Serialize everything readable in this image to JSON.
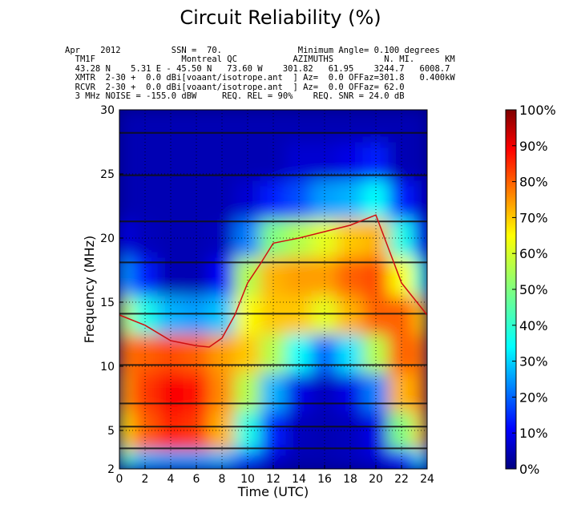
{
  "header": {
    "title": "Circuit Reliability (%)",
    "lines": [
      "Apr    2012          SSN =  70.               Minimum Angle= 0.100 degrees",
      "  TM1F                 Montreal QC           AZIMUTHS          N. MI.      KM",
      "  43.28 N    5.31 E - 45.50 N   73.60 W    301.82   61.95    3244.7   6008.7",
      "  XMTR  2-30 +  0.0 dBi[voaant/isotrope.ant  ] Az=  0.0 OFFaz=301.8   0.400kW",
      "  RCVR  2-30 +  0.0 dBi[voaant/isotrope.ant  ] Az=  0.0 OFFaz= 62.0",
      "  3 MHz NOISE = -155.0 dBW     REQ. REL = 90%    REQ. SNR = 24.0 dB"
    ]
  },
  "chart_data": {
    "type": "heatmap",
    "title": "Circuit Reliability (%)",
    "xlabel": "Time (UTC)",
    "ylabel": "Frequency (MHz)",
    "xlim": [
      0,
      24
    ],
    "ylim": [
      2,
      30
    ],
    "xticks": [
      0,
      2,
      4,
      6,
      8,
      10,
      12,
      14,
      16,
      18,
      20,
      22,
      24
    ],
    "yticks": [
      2,
      5,
      10,
      15,
      20,
      25,
      30
    ],
    "colorbar": {
      "min": 0,
      "max": 100,
      "ticks": [
        "0%",
        "10%",
        "20%",
        "30%",
        "40%",
        "50%",
        "60%",
        "70%",
        "80%",
        "90%",
        "100%"
      ]
    },
    "grid": true,
    "x": [
      0,
      2,
      4,
      6,
      8,
      10,
      12,
      14,
      16,
      18,
      20,
      22,
      24
    ],
    "y": [
      2,
      5,
      8,
      11,
      14,
      17,
      20,
      23,
      26,
      29
    ],
    "z": [
      [
        45,
        30,
        28,
        28,
        30,
        20,
        8,
        5,
        5,
        6,
        8,
        15,
        35
      ],
      [
        65,
        78,
        84,
        82,
        70,
        40,
        15,
        6,
        5,
        6,
        10,
        50,
        68
      ],
      [
        72,
        82,
        88,
        86,
        74,
        55,
        30,
        10,
        6,
        10,
        25,
        70,
        75
      ],
      [
        76,
        78,
        80,
        78,
        72,
        68,
        55,
        38,
        22,
        35,
        55,
        78,
        76
      ],
      [
        58,
        40,
        30,
        28,
        32,
        62,
        68,
        68,
        60,
        70,
        78,
        78,
        68
      ],
      [
        28,
        15,
        5,
        5,
        12,
        55,
        70,
        72,
        72,
        78,
        80,
        62,
        40
      ],
      [
        10,
        6,
        5,
        5,
        6,
        25,
        50,
        55,
        60,
        68,
        70,
        40,
        15
      ],
      [
        5,
        5,
        5,
        5,
        5,
        8,
        15,
        20,
        28,
        30,
        38,
        15,
        8
      ],
      [
        5,
        5,
        5,
        5,
        5,
        5,
        5,
        8,
        8,
        10,
        15,
        5,
        5
      ],
      [
        5,
        5,
        5,
        5,
        5,
        5,
        5,
        5,
        5,
        5,
        5,
        5,
        5
      ]
    ],
    "muf_line": {
      "x": [
        0,
        2,
        4,
        6,
        7,
        8,
        9,
        10,
        11,
        12,
        13,
        14,
        16,
        18,
        20,
        22,
        24
      ],
      "y": [
        14,
        13.2,
        12,
        11.6,
        11.5,
        12.2,
        14.0,
        16.5,
        18,
        19.6,
        19.8,
        20.0,
        20.5,
        21.0,
        21.8,
        16.5,
        14
      ]
    },
    "noise_bands_mhz": [
      3.6,
      5.3,
      7.1,
      10.1,
      14.1,
      18.1,
      21.3,
      24.9,
      28.2
    ]
  }
}
